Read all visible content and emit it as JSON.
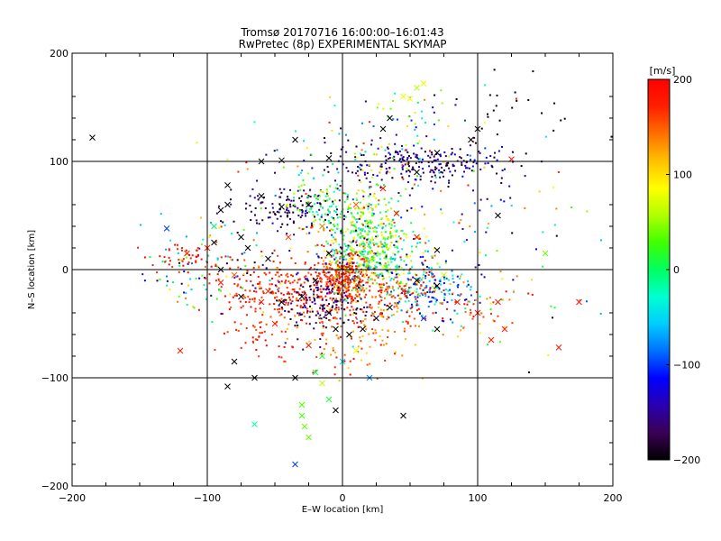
{
  "chart_data": {
    "type": "scatter",
    "title": "Tromsø 20170716 16:00:00–16:01:43",
    "subtitle": "RwPretec (8p) EXPERIMENTAL SKYMAP",
    "xlabel": "E–W location [km]",
    "ylabel": "N–S location [km]",
    "xlim": [
      -200,
      200
    ],
    "ylim": [
      -200,
      200
    ],
    "x_ticks": [
      -200,
      -100,
      0,
      100,
      200
    ],
    "y_ticks": [
      -200,
      -100,
      0,
      100,
      200
    ],
    "x_tick_labels": [
      "−200",
      "−100",
      "0",
      "100",
      "200"
    ],
    "y_tick_labels": [
      "−200",
      "−100",
      "0",
      "100",
      "200"
    ],
    "grid": true,
    "colorbar": {
      "label": "[m/s]",
      "range": [
        -200,
        200
      ],
      "ticks": [
        -200,
        -100,
        0,
        100,
        200
      ],
      "tick_labels": [
        "−200",
        "−100",
        "0",
        "100",
        "200"
      ],
      "colors": [
        "#000000",
        "#3a0055",
        "#2a00b0",
        "#0000ff",
        "#0070ff",
        "#00ccff",
        "#00ffd0",
        "#00ff60",
        "#40ff00",
        "#b0ff00",
        "#ffff00",
        "#ffc000",
        "#ff7000",
        "#ff2000",
        "#ff0000"
      ]
    },
    "cross_points": [
      [
        -185,
        122,
        -200
      ],
      [
        -45,
        101,
        -200
      ],
      [
        -35,
        120,
        -200
      ],
      [
        -10,
        103,
        -200
      ],
      [
        -85,
        78,
        -200
      ],
      [
        -60,
        68,
        -200
      ],
      [
        -45,
        58,
        -200
      ],
      [
        -25,
        60,
        -200
      ],
      [
        -90,
        55,
        -200
      ],
      [
        -130,
        38,
        -100
      ],
      [
        -95,
        25,
        -200
      ],
      [
        -70,
        20,
        -200
      ],
      [
        -55,
        10,
        -200
      ],
      [
        -90,
        0,
        -200
      ],
      [
        -80,
        -5,
        150
      ],
      [
        -90,
        -12,
        180
      ],
      [
        -75,
        -25,
        -200
      ],
      [
        -60,
        -30,
        180
      ],
      [
        -45,
        -30,
        -200
      ],
      [
        -30,
        -25,
        -200
      ],
      [
        -20,
        -10,
        -200
      ],
      [
        -10,
        -40,
        -200
      ],
      [
        -5,
        -55,
        -200
      ],
      [
        5,
        -60,
        -200
      ],
      [
        15,
        -55,
        -200
      ],
      [
        25,
        -45,
        -200
      ],
      [
        35,
        -35,
        -200
      ],
      [
        45,
        -20,
        180
      ],
      [
        55,
        -10,
        -200
      ],
      [
        70,
        -15,
        -200
      ],
      [
        85,
        -30,
        180
      ],
      [
        100,
        -40,
        180
      ],
      [
        115,
        -30,
        180
      ],
      [
        120,
        -55,
        180
      ],
      [
        110,
        -65,
        180
      ],
      [
        160,
        -72,
        180
      ],
      [
        175,
        -30,
        180
      ],
      [
        150,
        15,
        40
      ],
      [
        125,
        102,
        180
      ],
      [
        100,
        130,
        -200
      ],
      [
        70,
        108,
        -200
      ],
      [
        55,
        90,
        -200
      ],
      [
        30,
        130,
        -200
      ],
      [
        35,
        140,
        -200
      ],
      [
        45,
        160,
        80
      ],
      [
        55,
        168,
        60
      ],
      [
        60,
        172,
        80
      ],
      [
        50,
        158,
        90
      ],
      [
        -60,
        100,
        -200
      ],
      [
        -75,
        30,
        -200
      ],
      [
        -85,
        60,
        -200
      ],
      [
        -100,
        20,
        180
      ],
      [
        -115,
        15,
        180
      ],
      [
        -120,
        -75,
        180
      ],
      [
        -65,
        -100,
        -200
      ],
      [
        -80,
        -85,
        -200
      ],
      [
        -85,
        -108,
        -200
      ],
      [
        -35,
        -100,
        -200
      ],
      [
        -30,
        -125,
        30
      ],
      [
        -30,
        -135,
        30
      ],
      [
        -28,
        -145,
        40
      ],
      [
        -25,
        -155,
        40
      ],
      [
        -35,
        -180,
        -100
      ],
      [
        -15,
        -105,
        60
      ],
      [
        -15,
        -80,
        20
      ],
      [
        -20,
        -95,
        0
      ],
      [
        -10,
        -120,
        10
      ],
      [
        -5,
        -130,
        -200
      ],
      [
        0,
        -85,
        -50
      ],
      [
        20,
        -100,
        -80
      ],
      [
        45,
        -135,
        -200
      ],
      [
        10,
        -75,
        80
      ],
      [
        -65,
        -143,
        -20
      ],
      [
        115,
        50,
        -200
      ],
      [
        95,
        120,
        -200
      ],
      [
        -95,
        40,
        0
      ],
      [
        40,
        52,
        180
      ],
      [
        55,
        30,
        180
      ],
      [
        70,
        18,
        -200
      ],
      [
        -40,
        30,
        160
      ],
      [
        -15,
        40,
        140
      ],
      [
        10,
        60,
        150
      ],
      [
        30,
        75,
        180
      ],
      [
        -50,
        -50,
        170
      ],
      [
        -25,
        -70,
        180
      ],
      [
        70,
        -55,
        -200
      ],
      [
        60,
        -45,
        -100
      ],
      [
        75,
        -5,
        60
      ],
      [
        -55,
        -20,
        170
      ],
      [
        -10,
        15,
        -200
      ]
    ],
    "clusters": [
      {
        "cx": 0,
        "cy": -8,
        "sx": 10,
        "sy": 12,
        "n": 300,
        "vmin": 140,
        "vmax": 200
      },
      {
        "cx": 18,
        "cy": 35,
        "sx": 14,
        "sy": 18,
        "n": 260,
        "vmin": -40,
        "vmax": 120
      },
      {
        "cx": 25,
        "cy": 5,
        "sx": 20,
        "sy": 14,
        "n": 200,
        "vmin": -60,
        "vmax": 100
      },
      {
        "cx": 60,
        "cy": 97,
        "sx": 35,
        "sy": 10,
        "n": 230,
        "vmin": -200,
        "vmax": -110
      },
      {
        "cx": -40,
        "cy": 58,
        "sx": 20,
        "sy": 10,
        "n": 130,
        "vmin": -200,
        "vmax": -140
      },
      {
        "cx": -10,
        "cy": 55,
        "sx": 14,
        "sy": 12,
        "n": 90,
        "vmin": -50,
        "vmax": 60
      },
      {
        "cx": -40,
        "cy": -20,
        "sx": 22,
        "sy": 15,
        "n": 220,
        "vmin": 150,
        "vmax": 200
      },
      {
        "cx": -15,
        "cy": -32,
        "sx": 18,
        "sy": 15,
        "n": 150,
        "vmin": -200,
        "vmax": -130
      },
      {
        "cx": 65,
        "cy": -20,
        "sx": 16,
        "sy": 13,
        "n": 160,
        "vmin": -150,
        "vmax": -10
      },
      {
        "cx": 35,
        "cy": -25,
        "sx": 22,
        "sy": 15,
        "n": 140,
        "vmin": 120,
        "vmax": 200
      },
      {
        "cx": -100,
        "cy": 0,
        "sx": 25,
        "sy": 22,
        "n": 110,
        "vmin": -200,
        "vmax": 200
      },
      {
        "cx": -115,
        "cy": 12,
        "sx": 15,
        "sy": 8,
        "n": 45,
        "vmin": 160,
        "vmax": 200
      },
      {
        "cx": 10,
        "cy": 95,
        "sx": 40,
        "sy": 25,
        "n": 100,
        "vmin": -200,
        "vmax": 200
      },
      {
        "cx": 95,
        "cy": 30,
        "sx": 50,
        "sy": 55,
        "n": 120,
        "vmin": -200,
        "vmax": 200
      },
      {
        "cx": 0,
        "cy": -55,
        "sx": 30,
        "sy": 20,
        "n": 130,
        "vmin": 100,
        "vmax": 200
      },
      {
        "cx": -60,
        "cy": -60,
        "sx": 15,
        "sy": 10,
        "n": 40,
        "vmin": 150,
        "vmax": 200
      },
      {
        "cx": 10,
        "cy": 20,
        "sx": 25,
        "sy": 20,
        "n": 180,
        "vmin": -200,
        "vmax": 200
      },
      {
        "cx": 90,
        "cy": -35,
        "sx": 20,
        "sy": 12,
        "n": 50,
        "vmin": 100,
        "vmax": 200
      },
      {
        "cx": 130,
        "cy": 150,
        "sx": 25,
        "sy": 15,
        "n": 25,
        "vmin": -200,
        "vmax": -190
      },
      {
        "cx": 40,
        "cy": 140,
        "sx": 25,
        "sy": 20,
        "n": 40,
        "vmin": -200,
        "vmax": 100
      }
    ]
  }
}
